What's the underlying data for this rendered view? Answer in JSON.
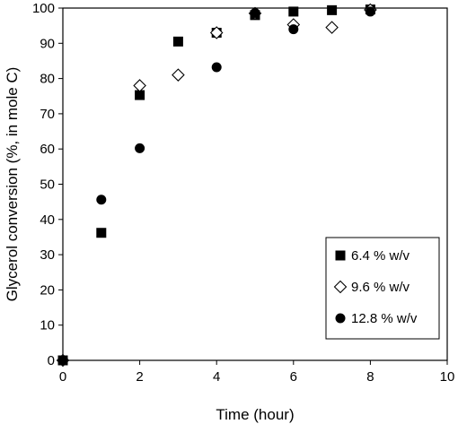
{
  "chart_data": {
    "type": "scatter",
    "title": "",
    "xlabel": "Time (hour)",
    "ylabel": "Glycerol conversion (%, in mole C)",
    "xlim": [
      0,
      10
    ],
    "ylim": [
      0,
      100
    ],
    "xticks": [
      "0",
      "2",
      "4",
      "6",
      "8",
      "10"
    ],
    "yticks": [
      "0",
      "10",
      "20",
      "30",
      "40",
      "50",
      "60",
      "70",
      "80",
      "90",
      "100"
    ],
    "grid": false,
    "legend_position": "bottom-right",
    "series": [
      {
        "name": "6.4 % w/v",
        "marker": "filled-square",
        "color": "#000000",
        "x": [
          0,
          1,
          2,
          3,
          4,
          5,
          6,
          7,
          8
        ],
        "y": [
          0,
          36.2,
          75.3,
          90.5,
          93.0,
          98.0,
          99.0,
          99.4,
          99.6
        ]
      },
      {
        "name": "9.6 % w/v",
        "marker": "open-diamond",
        "color": "#000000",
        "x": [
          0,
          2,
          3,
          4,
          5,
          6,
          7,
          8
        ],
        "y": [
          0,
          78.0,
          81.0,
          93.0,
          98.5,
          95.3,
          94.5,
          99.5
        ]
      },
      {
        "name": "12.8 % w/v",
        "marker": "filled-circle",
        "color": "#000000",
        "x": [
          0,
          1,
          2,
          4,
          5,
          6,
          8
        ],
        "y": [
          0,
          45.6,
          60.2,
          83.2,
          98.6,
          94.0,
          99.0
        ]
      }
    ]
  }
}
